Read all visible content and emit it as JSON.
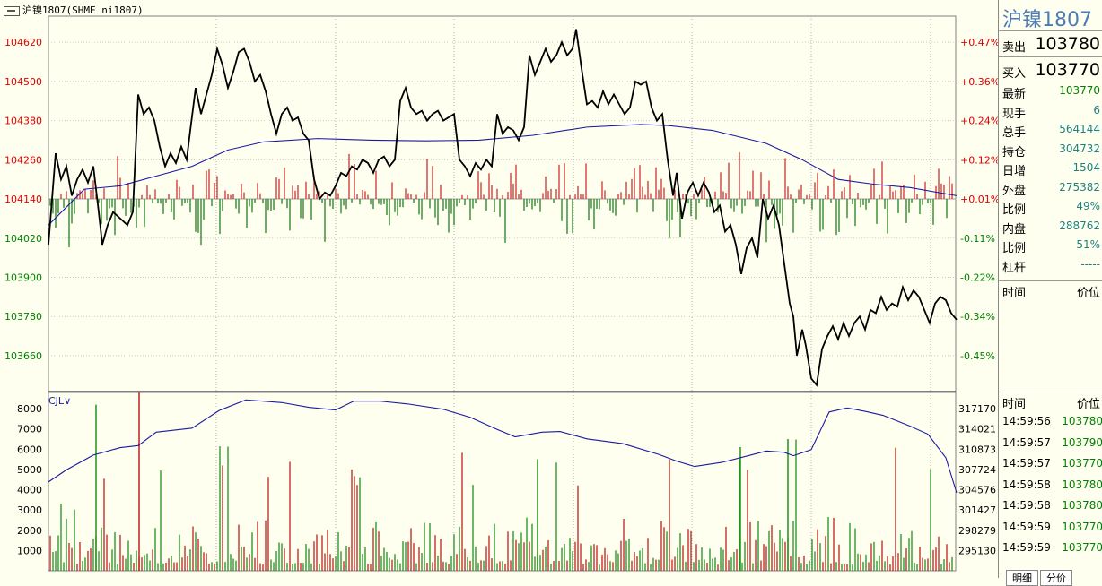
{
  "title": "沪镍1807(SHME ni1807)",
  "volume_label": "CJL",
  "panel": {
    "name": "沪镍1807",
    "sell_label": "卖出",
    "sell_value": "103780",
    "buy_label": "买入",
    "buy_value": "103770",
    "stats": [
      {
        "label": "最新",
        "value": "103770",
        "color": "#008000"
      },
      {
        "label": "现手",
        "value": "6",
        "color": "#208080"
      },
      {
        "label": "总手",
        "value": "564144",
        "color": "#208080"
      },
      {
        "label": "持仓",
        "value": "304732",
        "color": "#208080"
      },
      {
        "label": "日增",
        "value": "-1504",
        "color": "#208080"
      },
      {
        "label": "外盘",
        "value": "275382",
        "color": "#208080"
      },
      {
        "label": "比例",
        "value": "49%",
        "color": "#208080"
      },
      {
        "label": "内盘",
        "value": "288762",
        "color": "#208080"
      },
      {
        "label": "比例",
        "value": "51%",
        "color": "#208080"
      },
      {
        "label": "杠杆",
        "value": "-----",
        "color": "#208080"
      }
    ],
    "time_header": "时间",
    "price_header": "价位",
    "ticks": [
      {
        "time": "14:59:56",
        "price": "103780"
      },
      {
        "time": "14:59:57",
        "price": "103790"
      },
      {
        "time": "14:59:57",
        "price": "103770"
      },
      {
        "time": "14:59:58",
        "price": "103780"
      },
      {
        "time": "14:59:58",
        "price": "103780"
      },
      {
        "time": "14:59:59",
        "price": "103770"
      },
      {
        "time": "14:59:59",
        "price": "103770"
      }
    ],
    "tabs": [
      "明细",
      "分价"
    ]
  },
  "chart_data": {
    "type": "line",
    "price": {
      "y_ticks": [
        104620,
        104500,
        104380,
        104260,
        104140,
        104020,
        103900,
        103780,
        103660
      ],
      "pct_ticks": [
        "+0.47%",
        "+0.36%",
        "+0.24%",
        "+0.12%",
        "+0.01%",
        "-0.11%",
        "-0.22%",
        "-0.34%",
        "-0.45%"
      ],
      "ylim": [
        103550,
        104700
      ],
      "base": 104140,
      "series": [
        {
          "x": 0,
          "v": 104000
        },
        {
          "x": 8,
          "v": 104280
        },
        {
          "x": 14,
          "v": 104200
        },
        {
          "x": 20,
          "v": 104240
        },
        {
          "x": 26,
          "v": 104150
        },
        {
          "x": 32,
          "v": 104200
        },
        {
          "x": 38,
          "v": 104230
        },
        {
          "x": 44,
          "v": 104190
        },
        {
          "x": 50,
          "v": 104240
        },
        {
          "x": 56,
          "v": 104100
        },
        {
          "x": 60,
          "v": 104000
        },
        {
          "x": 66,
          "v": 104060
        },
        {
          "x": 72,
          "v": 104100
        },
        {
          "x": 80,
          "v": 104080
        },
        {
          "x": 88,
          "v": 104060
        },
        {
          "x": 94,
          "v": 104100
        },
        {
          "x": 100,
          "v": 104460
        },
        {
          "x": 106,
          "v": 104400
        },
        {
          "x": 112,
          "v": 104420
        },
        {
          "x": 118,
          "v": 104380
        },
        {
          "x": 124,
          "v": 104300
        },
        {
          "x": 130,
          "v": 104240
        },
        {
          "x": 136,
          "v": 104280
        },
        {
          "x": 142,
          "v": 104250
        },
        {
          "x": 148,
          "v": 104300
        },
        {
          "x": 154,
          "v": 104260
        },
        {
          "x": 158,
          "v": 104350
        },
        {
          "x": 164,
          "v": 104480
        },
        {
          "x": 170,
          "v": 104400
        },
        {
          "x": 176,
          "v": 104460
        },
        {
          "x": 182,
          "v": 104520
        },
        {
          "x": 188,
          "v": 104600
        },
        {
          "x": 194,
          "v": 104550
        },
        {
          "x": 200,
          "v": 104480
        },
        {
          "x": 206,
          "v": 104530
        },
        {
          "x": 212,
          "v": 104590
        },
        {
          "x": 218,
          "v": 104600
        },
        {
          "x": 224,
          "v": 104560
        },
        {
          "x": 230,
          "v": 104500
        },
        {
          "x": 236,
          "v": 104520
        },
        {
          "x": 242,
          "v": 104470
        },
        {
          "x": 248,
          "v": 104400
        },
        {
          "x": 254,
          "v": 104340
        },
        {
          "x": 260,
          "v": 104400
        },
        {
          "x": 266,
          "v": 104420
        },
        {
          "x": 272,
          "v": 104380
        },
        {
          "x": 278,
          "v": 104390
        },
        {
          "x": 284,
          "v": 104340
        },
        {
          "x": 290,
          "v": 104320
        },
        {
          "x": 296,
          "v": 104200
        },
        {
          "x": 302,
          "v": 104140
        },
        {
          "x": 308,
          "v": 104160
        },
        {
          "x": 314,
          "v": 104150
        },
        {
          "x": 320,
          "v": 104180
        },
        {
          "x": 326,
          "v": 104220
        },
        {
          "x": 332,
          "v": 104210
        },
        {
          "x": 338,
          "v": 104240
        },
        {
          "x": 344,
          "v": 104230
        },
        {
          "x": 350,
          "v": 104260
        },
        {
          "x": 356,
          "v": 104250
        },
        {
          "x": 362,
          "v": 104220
        },
        {
          "x": 368,
          "v": 104260
        },
        {
          "x": 374,
          "v": 104270
        },
        {
          "x": 380,
          "v": 104240
        },
        {
          "x": 386,
          "v": 104260
        },
        {
          "x": 392,
          "v": 104440
        },
        {
          "x": 398,
          "v": 104480
        },
        {
          "x": 404,
          "v": 104420
        },
        {
          "x": 410,
          "v": 104400
        },
        {
          "x": 416,
          "v": 104410
        },
        {
          "x": 422,
          "v": 104380
        },
        {
          "x": 428,
          "v": 104400
        },
        {
          "x": 434,
          "v": 104410
        },
        {
          "x": 440,
          "v": 104380
        },
        {
          "x": 446,
          "v": 104390
        },
        {
          "x": 452,
          "v": 104400
        },
        {
          "x": 458,
          "v": 104260
        },
        {
          "x": 464,
          "v": 104240
        },
        {
          "x": 470,
          "v": 104210
        },
        {
          "x": 476,
          "v": 104250
        },
        {
          "x": 482,
          "v": 104230
        },
        {
          "x": 488,
          "v": 104260
        },
        {
          "x": 494,
          "v": 104240
        },
        {
          "x": 500,
          "v": 104400
        },
        {
          "x": 506,
          "v": 104340
        },
        {
          "x": 512,
          "v": 104360
        },
        {
          "x": 518,
          "v": 104350
        },
        {
          "x": 524,
          "v": 104320
        },
        {
          "x": 530,
          "v": 104360
        },
        {
          "x": 536,
          "v": 104580
        },
        {
          "x": 542,
          "v": 104520
        },
        {
          "x": 548,
          "v": 104560
        },
        {
          "x": 554,
          "v": 104600
        },
        {
          "x": 560,
          "v": 104560
        },
        {
          "x": 566,
          "v": 104580
        },
        {
          "x": 572,
          "v": 104620
        },
        {
          "x": 578,
          "v": 104580
        },
        {
          "x": 584,
          "v": 104600
        },
        {
          "x": 588,
          "v": 104660
        },
        {
          "x": 594,
          "v": 104540
        },
        {
          "x": 600,
          "v": 104430
        },
        {
          "x": 606,
          "v": 104440
        },
        {
          "x": 612,
          "v": 104420
        },
        {
          "x": 618,
          "v": 104470
        },
        {
          "x": 624,
          "v": 104430
        },
        {
          "x": 630,
          "v": 104460
        },
        {
          "x": 636,
          "v": 104430
        },
        {
          "x": 642,
          "v": 104400
        },
        {
          "x": 648,
          "v": 104420
        },
        {
          "x": 654,
          "v": 104500
        },
        {
          "x": 660,
          "v": 104490
        },
        {
          "x": 666,
          "v": 104500
        },
        {
          "x": 672,
          "v": 104420
        },
        {
          "x": 678,
          "v": 104380
        },
        {
          "x": 684,
          "v": 104400
        },
        {
          "x": 690,
          "v": 104260
        },
        {
          "x": 696,
          "v": 104150
        },
        {
          "x": 700,
          "v": 104220
        },
        {
          "x": 706,
          "v": 104080
        },
        {
          "x": 712,
          "v": 104160
        },
        {
          "x": 718,
          "v": 104190
        },
        {
          "x": 724,
          "v": 104150
        },
        {
          "x": 730,
          "v": 104190
        },
        {
          "x": 736,
          "v": 104160
        },
        {
          "x": 742,
          "v": 104100
        },
        {
          "x": 748,
          "v": 104120
        },
        {
          "x": 754,
          "v": 104040
        },
        {
          "x": 760,
          "v": 104060
        },
        {
          "x": 766,
          "v": 104000
        },
        {
          "x": 772,
          "v": 103910
        },
        {
          "x": 778,
          "v": 103990
        },
        {
          "x": 784,
          "v": 104020
        },
        {
          "x": 790,
          "v": 103960
        },
        {
          "x": 796,
          "v": 104140
        },
        {
          "x": 802,
          "v": 104080
        },
        {
          "x": 808,
          "v": 104120
        },
        {
          "x": 814,
          "v": 104060
        },
        {
          "x": 820,
          "v": 103940
        },
        {
          "x": 826,
          "v": 103820
        },
        {
          "x": 830,
          "v": 103780
        },
        {
          "x": 834,
          "v": 103660
        },
        {
          "x": 840,
          "v": 103740
        },
        {
          "x": 844,
          "v": 103690
        },
        {
          "x": 850,
          "v": 103590
        },
        {
          "x": 856,
          "v": 103570
        },
        {
          "x": 862,
          "v": 103680
        },
        {
          "x": 868,
          "v": 103720
        },
        {
          "x": 874,
          "v": 103750
        },
        {
          "x": 880,
          "v": 103710
        },
        {
          "x": 886,
          "v": 103760
        },
        {
          "x": 892,
          "v": 103720
        },
        {
          "x": 898,
          "v": 103760
        },
        {
          "x": 904,
          "v": 103780
        },
        {
          "x": 910,
          "v": 103740
        },
        {
          "x": 916,
          "v": 103800
        },
        {
          "x": 922,
          "v": 103790
        },
        {
          "x": 928,
          "v": 103840
        },
        {
          "x": 934,
          "v": 103800
        },
        {
          "x": 940,
          "v": 103820
        },
        {
          "x": 946,
          "v": 103810
        },
        {
          "x": 952,
          "v": 103870
        },
        {
          "x": 958,
          "v": 103830
        },
        {
          "x": 964,
          "v": 103860
        },
        {
          "x": 970,
          "v": 103840
        },
        {
          "x": 976,
          "v": 103800
        },
        {
          "x": 982,
          "v": 103760
        },
        {
          "x": 988,
          "v": 103820
        },
        {
          "x": 994,
          "v": 103840
        },
        {
          "x": 1000,
          "v": 103830
        },
        {
          "x": 1006,
          "v": 103790
        },
        {
          "x": 1012,
          "v": 103770
        }
      ],
      "avg_series": [
        {
          "x": 0,
          "v": 104060
        },
        {
          "x": 40,
          "v": 104170
        },
        {
          "x": 80,
          "v": 104180
        },
        {
          "x": 120,
          "v": 104210
        },
        {
          "x": 160,
          "v": 104240
        },
        {
          "x": 200,
          "v": 104290
        },
        {
          "x": 240,
          "v": 104315
        },
        {
          "x": 300,
          "v": 104325
        },
        {
          "x": 360,
          "v": 104320
        },
        {
          "x": 420,
          "v": 104318
        },
        {
          "x": 480,
          "v": 104320
        },
        {
          "x": 540,
          "v": 104335
        },
        {
          "x": 600,
          "v": 104360
        },
        {
          "x": 660,
          "v": 104368
        },
        {
          "x": 690,
          "v": 104365
        },
        {
          "x": 740,
          "v": 104350
        },
        {
          "x": 800,
          "v": 104310
        },
        {
          "x": 840,
          "v": 104260
        },
        {
          "x": 880,
          "v": 104200
        },
        {
          "x": 920,
          "v": 104185
        },
        {
          "x": 960,
          "v": 104175
        },
        {
          "x": 1012,
          "v": 104150
        }
      ]
    },
    "volume": {
      "y_ticks": [
        8000,
        7000,
        6000,
        5000,
        4000,
        3000,
        2000,
        1000
      ],
      "oi_ticks": [
        317170,
        314021,
        310873,
        307724,
        304576,
        301427,
        298279,
        295130
      ],
      "ylim": [
        0,
        8800
      ],
      "bars": [],
      "oi_series": [
        {
          "x": 0,
          "v": 306200
        },
        {
          "x": 20,
          "v": 308000
        },
        {
          "x": 50,
          "v": 310200
        },
        {
          "x": 80,
          "v": 311300
        },
        {
          "x": 100,
          "v": 311600
        },
        {
          "x": 120,
          "v": 313600
        },
        {
          "x": 160,
          "v": 314200
        },
        {
          "x": 190,
          "v": 316800
        },
        {
          "x": 220,
          "v": 318400
        },
        {
          "x": 260,
          "v": 318000
        },
        {
          "x": 290,
          "v": 317300
        },
        {
          "x": 320,
          "v": 316900
        },
        {
          "x": 340,
          "v": 318200
        },
        {
          "x": 370,
          "v": 318200
        },
        {
          "x": 400,
          "v": 317800
        },
        {
          "x": 440,
          "v": 317000
        },
        {
          "x": 470,
          "v": 315800
        },
        {
          "x": 500,
          "v": 314000
        },
        {
          "x": 520,
          "v": 312900
        },
        {
          "x": 550,
          "v": 313600
        },
        {
          "x": 570,
          "v": 313700
        },
        {
          "x": 600,
          "v": 312600
        },
        {
          "x": 640,
          "v": 311900
        },
        {
          "x": 680,
          "v": 310300
        },
        {
          "x": 700,
          "v": 309300
        },
        {
          "x": 720,
          "v": 308500
        },
        {
          "x": 750,
          "v": 309100
        },
        {
          "x": 780,
          "v": 310100
        },
        {
          "x": 800,
          "v": 310800
        },
        {
          "x": 820,
          "v": 310600
        },
        {
          "x": 830,
          "v": 310100
        },
        {
          "x": 850,
          "v": 311000
        },
        {
          "x": 870,
          "v": 316600
        },
        {
          "x": 890,
          "v": 317200
        },
        {
          "x": 910,
          "v": 316700
        },
        {
          "x": 930,
          "v": 316100
        },
        {
          "x": 960,
          "v": 314500
        },
        {
          "x": 980,
          "v": 313300
        },
        {
          "x": 1000,
          "v": 309800
        },
        {
          "x": 1012,
          "v": 304600
        }
      ]
    }
  }
}
